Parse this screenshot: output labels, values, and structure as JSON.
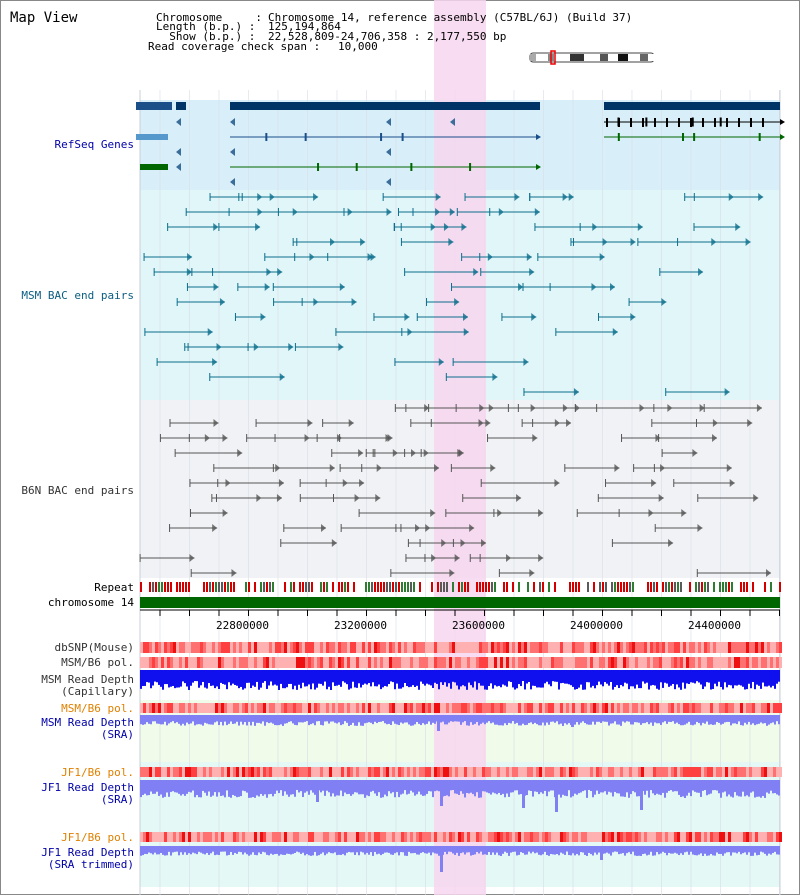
{
  "header": {
    "title": "Map View",
    "chromosome_key": "Chromosome     : ",
    "chromosome_val": "Chromosome 14, reference assembly (C57BL/6J) (Build 37)",
    "length_key": "Length (b.p.) : ",
    "length_val": "125,194,864",
    "show_key": "  Show (b.p.) : ",
    "show_val": "22,528,809-24,706,358 : 2,177,550 bp",
    "coverage_key": "Read coverage check span : ",
    "coverage_val": "10,000"
  },
  "tracks": {
    "refseq": "RefSeq Genes",
    "msm_bac": "MSM BAC end pairs",
    "b6n_bac": "B6N BAC end pairs",
    "repeat": "Repeat",
    "chromosome": "chromosome 14",
    "dbsnp": "dbSNP(Mouse)",
    "msm_b6_pol": "MSM/B6 pol.",
    "msm_depth_cap_1": "MSM Read Depth",
    "msm_depth_cap_2": "(Capillary)",
    "msm_b6_pol_sra": "MSM/B6 pol.",
    "msm_depth_sra_1": "MSM Read Depth",
    "msm_depth_sra_2": "(SRA)",
    "jf1_pol_1": "JF1/B6 pol.",
    "jf1_depth_1": "JF1 Read Depth",
    "jf1_depth_1b": "(SRA)",
    "jf1_pol_2": "JF1/B6 pol.",
    "jf1_depth_2": "JF1 Read Depth",
    "jf1_depth_2b": "(SRA trimmed)"
  },
  "axis": {
    "ticks": [
      "22800000",
      "23200000",
      "23600000",
      "24000000",
      "24400000"
    ]
  },
  "colors": {
    "refseq_bg": "#d8eef9",
    "msm_bg": "#e1f6f8",
    "b6n_bg": "#f1f2f5",
    "highlight": "#f7d6ef",
    "dark_blue": "#003366",
    "green": "#006600",
    "msm_blue": "#0b6e8c",
    "label_blue": "#0000aa",
    "label_orange": "#e08000",
    "depth_blue": "#1010ee",
    "depth_lilac": "#8080f4",
    "pol_red": "#ff6060"
  }
}
